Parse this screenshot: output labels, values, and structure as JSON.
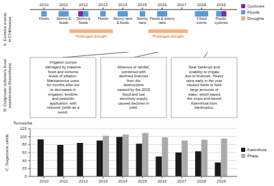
{
  "chart_data": [
    {
      "type": "timeline",
      "title": "A. Extreme events\nin Chikhwawa",
      "xlim": [
        2009.3,
        2019.8
      ],
      "xticks": [
        2010,
        2011,
        2012,
        2013,
        2014,
        2015,
        2016,
        2017,
        2018,
        2019
      ],
      "series": [
        {
          "name": "Cyclones",
          "color": "#7030a0"
        },
        {
          "name": "Floods",
          "color": "#5b9bd5"
        },
        {
          "name": "Droughts",
          "color": "#f4b183"
        }
      ],
      "events": [
        {
          "x": 2010,
          "icons": [
            "Floods"
          ],
          "label": "Floods"
        },
        {
          "x": 2011,
          "icons": [
            "Floods",
            "Floods"
          ],
          "label": "Storms &\nfloods"
        },
        {
          "x": 2012,
          "icons": [
            "Cyclones",
            "Floods"
          ],
          "label": "Storms &\nfloods"
        },
        {
          "x": 2013,
          "icons": [
            "Floods"
          ],
          "label": "Floods"
        },
        {
          "x": 2014,
          "icons": [
            "Floods",
            "Floods"
          ],
          "label": "Stormy rains\n& floods"
        },
        {
          "x": 2015,
          "icons": [
            "Floods"
          ],
          "label": "Stormy\nrains"
        },
        {
          "x": 2016,
          "icons": [
            "Floods",
            "Floods"
          ],
          "label": "Floods & stormy\nrains"
        },
        {
          "x": 2018,
          "icons": [
            "Floods",
            "Floods",
            "Floods"
          ],
          "label": "3 flood\nevents"
        },
        {
          "x": 2019,
          "icons": [
            "Floods",
            "Cyclones"
          ],
          "label": "Floods,\ncyclones"
        }
      ],
      "ranges": [
        {
          "series": "Droughts",
          "start": 2011.3,
          "end": 2013.5,
          "label": "Prolonged drought",
          "label_color": "#c55a11"
        },
        {
          "series": "Droughts",
          "start": 2015.3,
          "end": 2017.3,
          "label": "Prolonged drought",
          "label_color": "#c55a11"
        }
      ],
      "legend": "upper right"
    },
    {
      "type": "text_boxes",
      "title": "B. Outgrower scheme's lived\nexperiences (Kasinthula)",
      "annotations": [
        {
          "text": "Irrigation pumps\ndamaged by massive\nflood and extreme\nlevels of siltation.\nMaintainence costs\nfor months after led\nto decreases in\nirrigation, fertilizer\nand pesticide\napplication, with\nreduced yields as a\nresult.",
          "x": 2014.3
        },
        {
          "text": "Absence of rainfall,\ncombined with\ndeclined finances\nfrom the\ndestructions\ncaused by the 2015\nflood and low\nelectricity supply\ncaused declines in\nyield.",
          "x": 2015.8
        },
        {
          "text": "Near bankrupt and\nunability to irrigate\ndue to finances. Heavy\nrains early in the year\ncaused fields to hold\nlarge amounts of\nwater, which saved\nthe crops and saved\nKasinthula from\nbankruptcy.",
          "x": 2018.3
        }
      ]
    },
    {
      "type": "bar",
      "title": "C. Sugarcane yields",
      "ylabel": "Tonnes/ha",
      "x": [
        2010,
        2011,
        2012,
        2013,
        2014,
        2015,
        2016,
        2017,
        2018,
        2019
      ],
      "xlim": [
        2009.3,
        2019.8
      ],
      "xticks": [
        2010,
        2011,
        2012,
        2013,
        2014,
        2015,
        2016,
        2017,
        2018,
        2019
      ],
      "ylim": [
        0,
        120
      ],
      "yticks": [
        0,
        20,
        40,
        60,
        80,
        100,
        120
      ],
      "grid": true,
      "legend": "right",
      "series": [
        {
          "name": "Kasinthula",
          "color": "#1a1a1a",
          "values": [
            93,
            79,
            84,
            90,
            99,
            82,
            50,
            60,
            63,
            35
          ]
        },
        {
          "name": "Phata",
          "color": "#aaaaaa",
          "values": [
            0,
            0,
            0,
            102,
            105,
            109,
            98,
            90,
            92,
            95
          ]
        }
      ]
    }
  ]
}
